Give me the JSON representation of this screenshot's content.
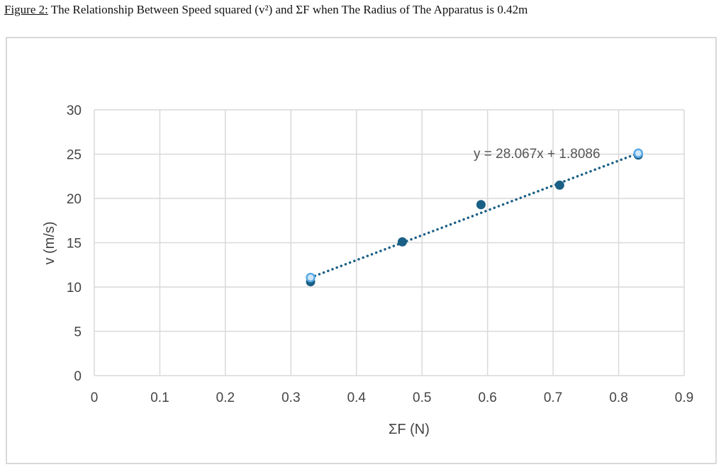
{
  "caption": {
    "figure_label": "Figure 2:",
    "text": " The Relationship Between Speed squared (v²) and ΣF when The Radius of The Apparatus is 0.42m"
  },
  "chart_data": {
    "type": "scatter",
    "title": "",
    "xlabel": "ΣF (N)",
    "ylabel": "v (m/s)",
    "xlim": [
      0,
      0.9
    ],
    "ylim": [
      0,
      30
    ],
    "xticks": [
      "0",
      "0.1",
      "0.2",
      "0.3",
      "0.4",
      "0.5",
      "0.6",
      "0.7",
      "0.8",
      "0.9"
    ],
    "yticks": [
      "0",
      "5",
      "10",
      "15",
      "20",
      "25",
      "30"
    ],
    "grid": true,
    "legend": "none",
    "series": [
      {
        "x": [
          0.33,
          0.47,
          0.59,
          0.71,
          0.83
        ],
        "y": [
          10.6,
          15.1,
          19.3,
          21.5,
          24.9
        ],
        "color": "#1a5f85"
      }
    ],
    "trendline": {
      "type": "linear",
      "slope": 28.067,
      "intercept": 1.8086,
      "x_range": [
        0.33,
        0.83
      ],
      "equation_label": "y = 28.067x + 1.8086",
      "color": "#1a5f85",
      "endpoint_color": "#5aa9e6",
      "style": "dotted"
    }
  }
}
